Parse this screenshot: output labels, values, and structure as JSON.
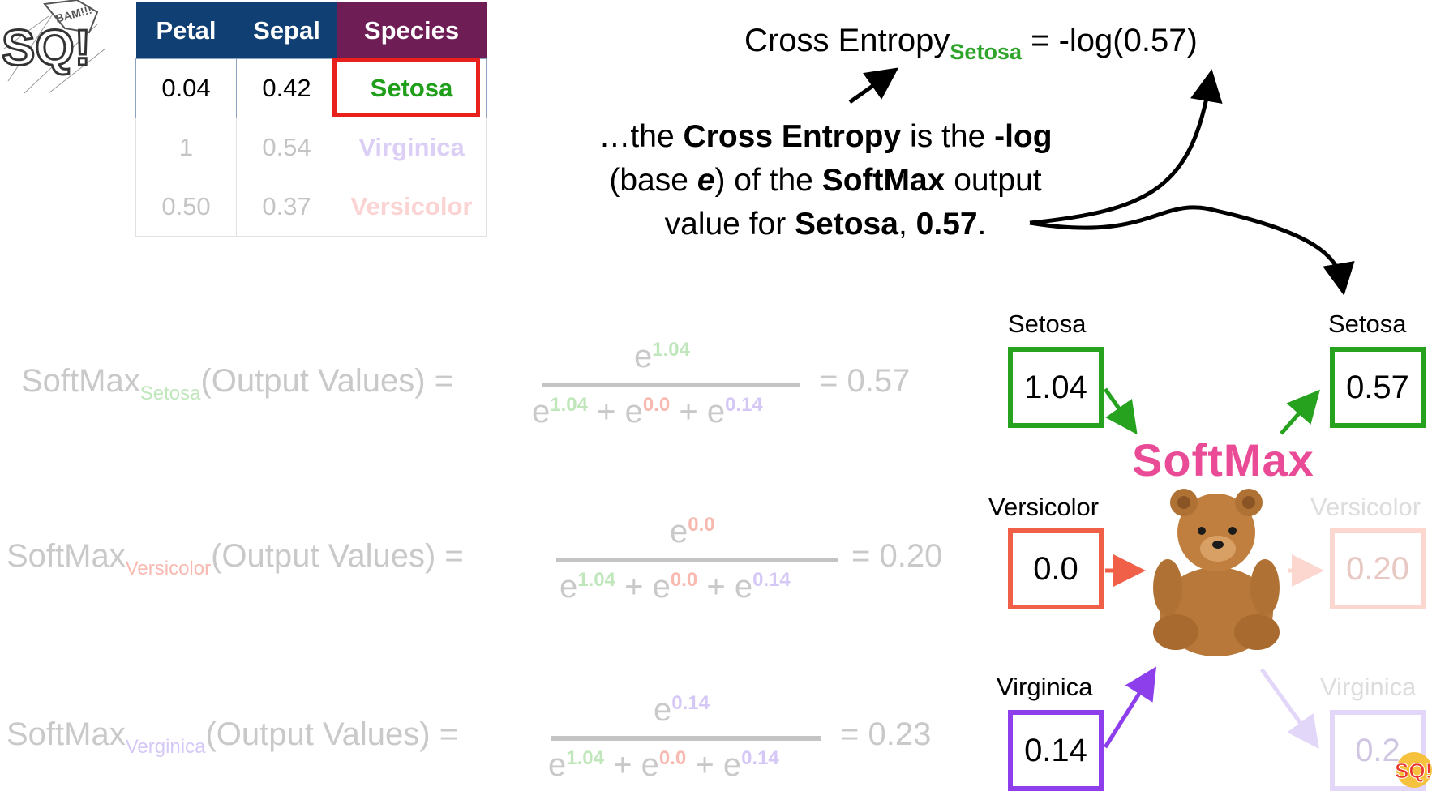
{
  "table": {
    "headers": [
      "Petal",
      "Sepal",
      "Species"
    ],
    "rows": [
      {
        "petal": "0.04",
        "sepal": "0.42",
        "species": "Setosa"
      },
      {
        "petal": "1",
        "sepal": "0.54",
        "species": "Virginica"
      },
      {
        "petal": "0.50",
        "sepal": "0.37",
        "species": "Versicolor"
      }
    ]
  },
  "cross_entropy": {
    "lhs": "Cross Entropy",
    "sub": "Setosa",
    "rhs": "= -log(0.57)"
  },
  "explanation": {
    "p1": "…the ",
    "b1": "Cross Entropy",
    "p2": " is the ",
    "b2": "-log",
    "p3": "(base ",
    "b3": "e",
    "p4": ") of the ",
    "b4": "SoftMax",
    "p5": " output",
    "p6": "value for ",
    "b5": "Setosa",
    "p7": ", ",
    "b6": "0.57",
    "p8": "."
  },
  "softmax_formulas": [
    {
      "name": "SoftMax",
      "sub": "Setosa",
      "args": "(Output Values) =",
      "num_exp": "1.04",
      "den": [
        "1.04",
        "0.0",
        "0.14"
      ],
      "result": "= 0.57"
    },
    {
      "name": "SoftMax",
      "sub": "Versicolor",
      "args": "(Output Values) =",
      "num_exp": "0.0",
      "den": [
        "1.04",
        "0.0",
        "0.14"
      ],
      "result": "= 0.20"
    },
    {
      "name": "SoftMax",
      "sub": "Verginica",
      "args": "(Output Values) =",
      "num_exp": "0.14",
      "den": [
        "1.04",
        "0.0",
        "0.14"
      ],
      "result": "= 0.23"
    }
  ],
  "base": "e",
  "plus": "+",
  "network": {
    "inputs": [
      {
        "label": "Setosa",
        "value": "1.04"
      },
      {
        "label": "Versicolor",
        "value": "0.0"
      },
      {
        "label": "Virginica",
        "value": "0.14"
      }
    ],
    "outputs": [
      {
        "label": "Setosa",
        "value": "0.57"
      },
      {
        "label": "Versicolor",
        "value": "0.20"
      },
      {
        "label": "Virginica",
        "value": "0.2"
      }
    ],
    "softmax_label": "SoftMax"
  },
  "logo_text": "BAM!!! SQ!",
  "colors": {
    "setosa": "#27a21f",
    "versicolor": "#f06048",
    "virginica": "#8d3fec",
    "softmax": "#e94b96",
    "petal_header": "#0f3f73",
    "species_header": "#6f1d55",
    "highlight": "#e8211d"
  }
}
